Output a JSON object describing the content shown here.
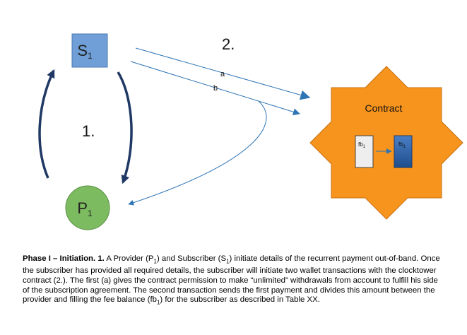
{
  "nodes": {
    "subscriber": {
      "label": "S",
      "sub": "1",
      "color": "#6f9fd6"
    },
    "provider": {
      "label": "P",
      "sub": "1",
      "color": "#7dbb61"
    },
    "contract": {
      "label": "Contract",
      "color": "#f7941d"
    },
    "fee_left": {
      "label": "fb",
      "sub": "1"
    },
    "fee_right": {
      "label": "fb",
      "sub": "1"
    }
  },
  "steps": {
    "step1": "1.",
    "step2": "2."
  },
  "arrows": {
    "a": "a",
    "b": "b"
  },
  "caption": {
    "bold": "Phase I – Initiation. 1.",
    "text_1": " A Provider (P",
    "sub_1": "1",
    "text_2": ") and Subscriber (S",
    "sub_2": "1",
    "text_3": ") initiate details of the recurrent payment out-of-band. Once the subscriber has provided all required details, the subscriber will initiate two wallet transactions with the clocktower contract (2.). The first (a) gives the contract permission to make “unlimited” withdrawals from account to fulfill his side of the subscription agreement. The second transaction sends the first payment and divides this amount between the provider and filling the fee balance (fb",
    "sub_3": "1",
    "text_4": ") for the subscriber as described in Table XX."
  }
}
